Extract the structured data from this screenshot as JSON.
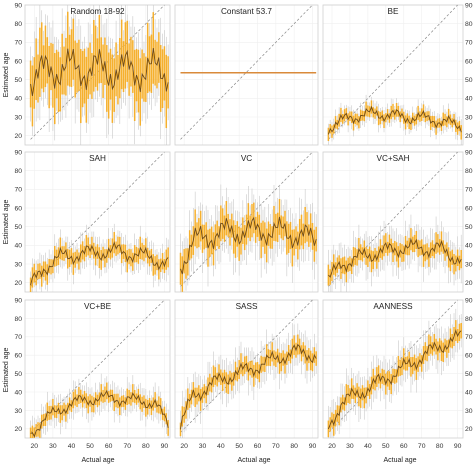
{
  "colors": {
    "bar": "#f5b02e",
    "line": "#6e4a17",
    "whisker": "#c9c9c9",
    "identity": "#888888",
    "constant": "#d98a3a",
    "panel_border": "#cfcfcf"
  },
  "chart_data": {
    "type": "line",
    "layout": "3x3 grid of panels",
    "xlabel": "Actual age",
    "ylabel": "Estimated age",
    "xlim": [
      15,
      93
    ],
    "ylim": [
      15,
      90
    ],
    "x_ticks": [
      20,
      30,
      40,
      50,
      60,
      70,
      80,
      90
    ],
    "y_ticks": [
      20,
      30,
      40,
      50,
      60,
      70,
      80,
      90
    ],
    "right_y_ticks": [
      "20",
      "30",
      "40",
      "50",
      "60",
      "70",
      "80",
      "90"
    ],
    "reference_line": "dashed identity line y = x",
    "panels": [
      {
        "title": "Random 18-92",
        "kind": "random",
        "base": [
          [
            18,
            50
          ],
          [
            30,
            56
          ],
          [
            45,
            56
          ],
          [
            60,
            55
          ],
          [
            75,
            55
          ],
          [
            92,
            55
          ]
        ],
        "bar_half": 20,
        "whisker_half": 30,
        "amp": 12
      },
      {
        "title": "Constant 53.7",
        "kind": "constant",
        "value": 53.7
      },
      {
        "title": "BE",
        "kind": "trend",
        "base": [
          [
            18,
            24
          ],
          [
            30,
            30
          ],
          [
            45,
            32
          ],
          [
            60,
            30
          ],
          [
            75,
            29
          ],
          [
            92,
            25
          ]
        ],
        "bar_half": 4,
        "whisker_half": 7,
        "amp": 4
      },
      {
        "title": "SAH",
        "kind": "trend",
        "base": [
          [
            18,
            18
          ],
          [
            25,
            28
          ],
          [
            35,
            34
          ],
          [
            50,
            36
          ],
          [
            65,
            37
          ],
          [
            80,
            34
          ],
          [
            92,
            30
          ]
        ],
        "bar_half": 6,
        "whisker_half": 11,
        "amp": 5
      },
      {
        "title": "VC",
        "kind": "trend",
        "base": [
          [
            18,
            30
          ],
          [
            25,
            42
          ],
          [
            40,
            47
          ],
          [
            60,
            48
          ],
          [
            75,
            47
          ],
          [
            92,
            43
          ]
        ],
        "bar_half": 10,
        "whisker_half": 19,
        "amp": 8
      },
      {
        "title": "VC+SAH",
        "kind": "trend",
        "base": [
          [
            18,
            21
          ],
          [
            25,
            30
          ],
          [
            40,
            35
          ],
          [
            60,
            39
          ],
          [
            80,
            38
          ],
          [
            92,
            32
          ]
        ],
        "bar_half": 6,
        "whisker_half": 13,
        "amp": 5
      },
      {
        "title": "VC+BE",
        "kind": "trend",
        "base": [
          [
            18,
            17
          ],
          [
            25,
            25
          ],
          [
            40,
            34
          ],
          [
            55,
            37
          ],
          [
            70,
            36
          ],
          [
            85,
            34
          ],
          [
            92,
            22
          ]
        ],
        "bar_half": 5,
        "whisker_half": 10,
        "amp": 4
      },
      {
        "title": "SASS",
        "kind": "trend",
        "base": [
          [
            18,
            22
          ],
          [
            25,
            38
          ],
          [
            40,
            47
          ],
          [
            60,
            54
          ],
          [
            80,
            62
          ],
          [
            92,
            60
          ]
        ],
        "bar_half": 6,
        "whisker_half": 13,
        "amp": 5
      },
      {
        "title": "AANNESS",
        "kind": "trend",
        "base": [
          [
            18,
            20
          ],
          [
            25,
            34
          ],
          [
            40,
            42
          ],
          [
            60,
            53
          ],
          [
            80,
            65
          ],
          [
            92,
            70
          ]
        ],
        "bar_half": 6,
        "whisker_half": 13,
        "amp": 5
      }
    ]
  }
}
